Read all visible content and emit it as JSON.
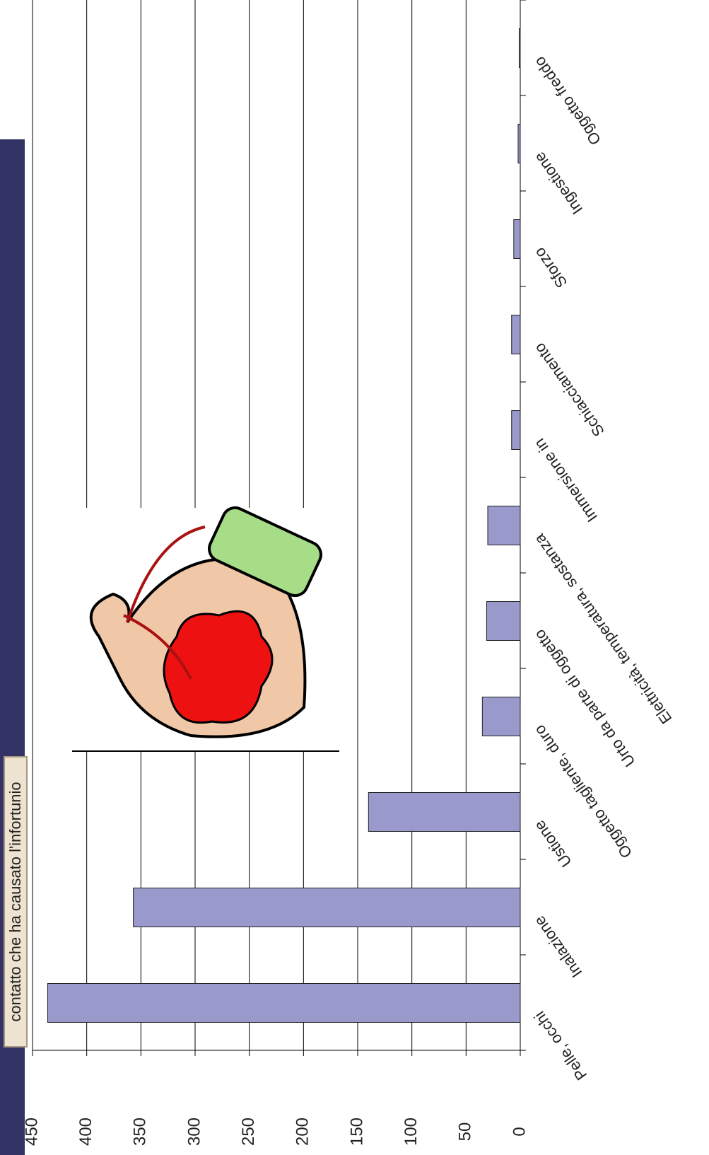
{
  "chart_data": {
    "type": "bar",
    "title": "contatto che ha causato l'infortunio",
    "categories": [
      "Pelle, occhi",
      "Inalazione",
      "Ustione",
      "Oggetto tagliente, duro",
      "Urto da parte di oggetto",
      "Elettricità, temperatura, sostanza",
      "Immersione in",
      "Schiacciamento",
      "Sforzo",
      "Ingestione",
      "Oggetto freddo"
    ],
    "values": [
      436,
      357,
      140,
      35,
      31,
      30,
      8,
      8,
      6,
      2,
      1
    ],
    "color": "#9999cc",
    "ylim": [
      0,
      450
    ],
    "yticks": [
      0,
      50,
      100,
      150,
      200,
      250,
      300,
      350,
      400,
      450
    ],
    "grid": true
  }
}
